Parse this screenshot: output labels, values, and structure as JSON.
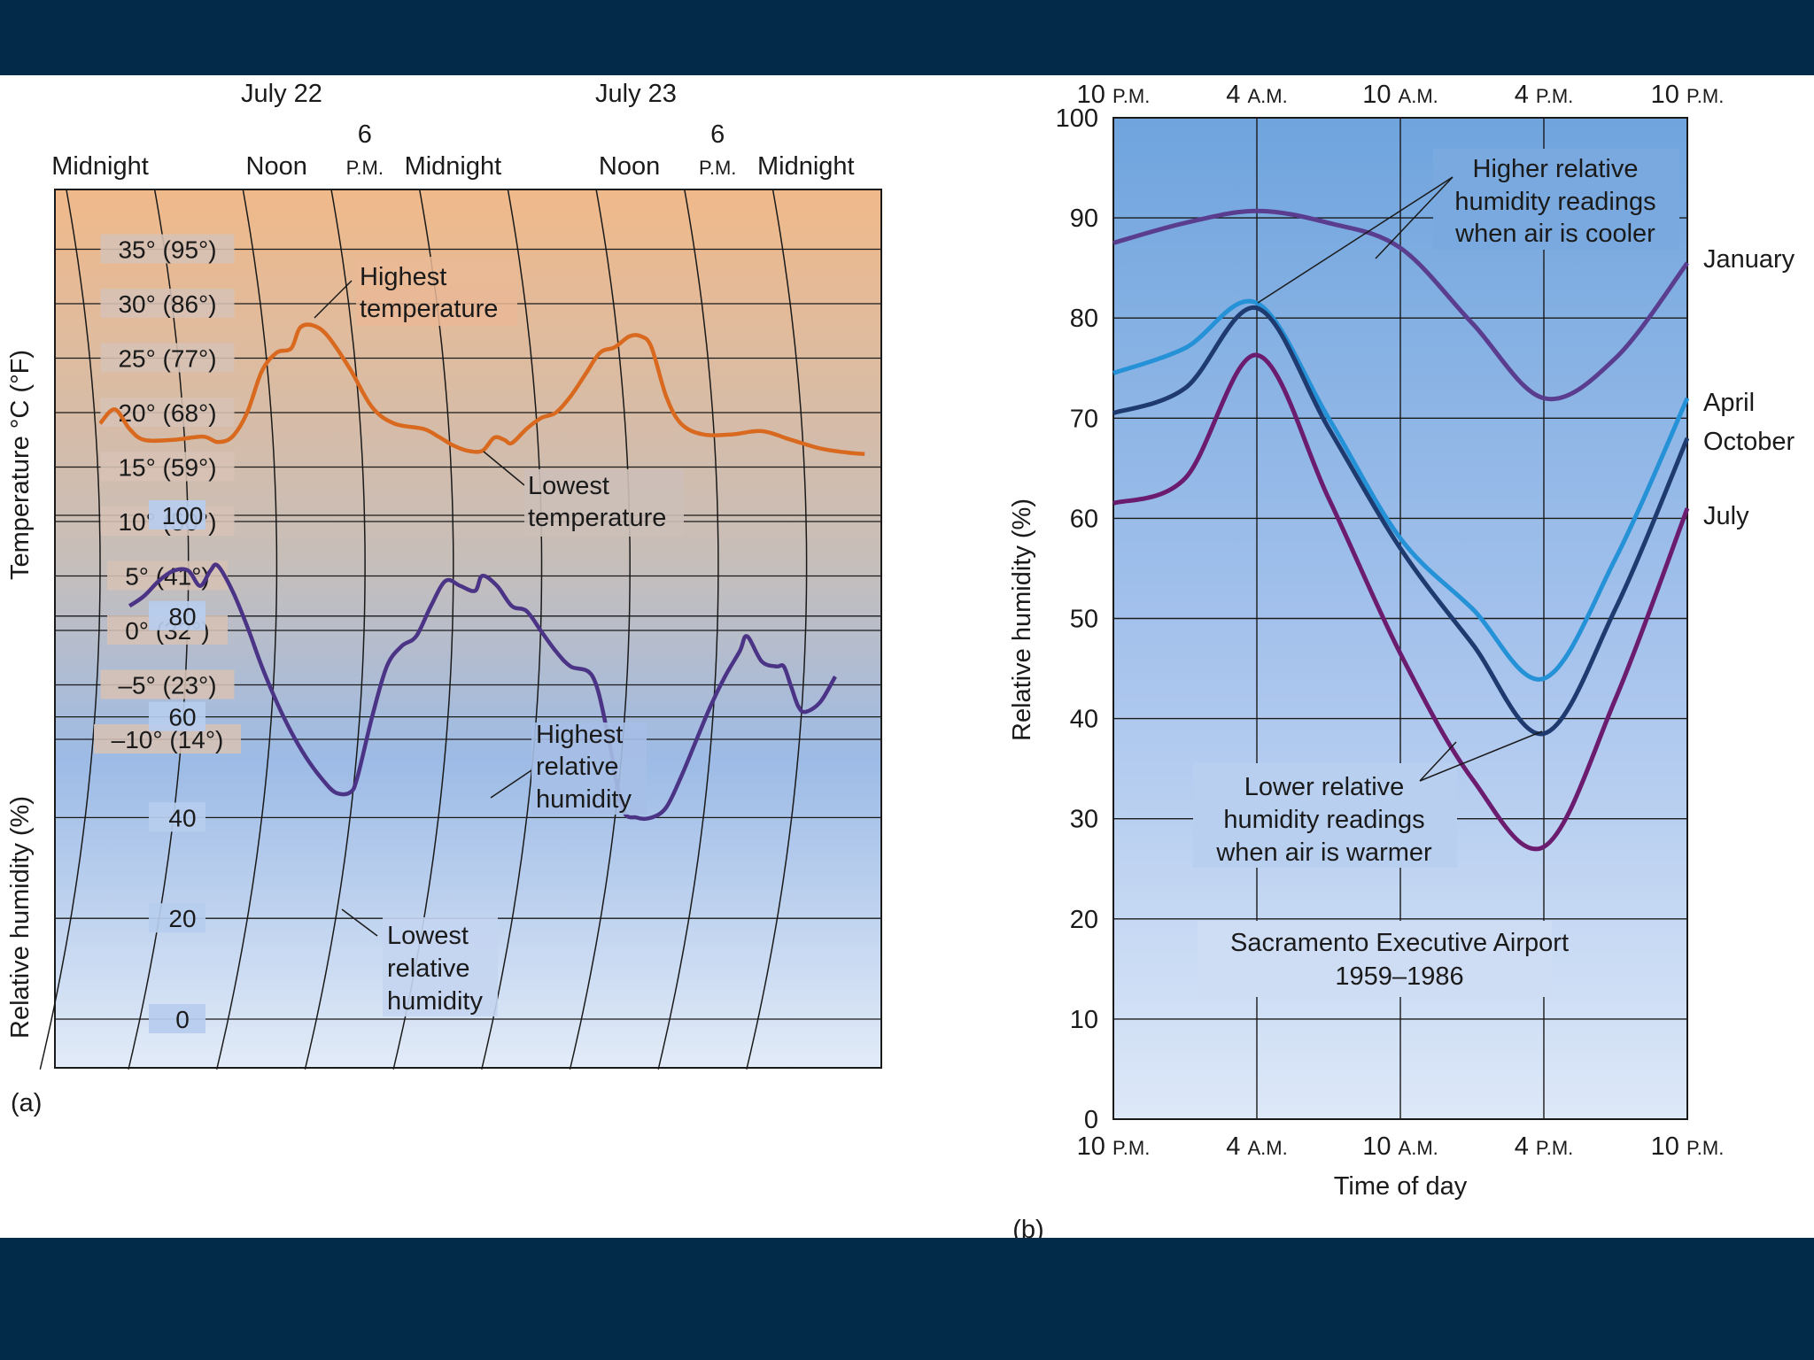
{
  "chart_data": [
    {
      "panel_label": "(a)",
      "type": "line",
      "x_top_dates": [
        "July 22",
        "July 23"
      ],
      "x_top_labels": [
        {
          "t": 0,
          "text": "Midnight"
        },
        {
          "t": 12,
          "text": "Noon"
        },
        {
          "t": 18,
          "text": "6",
          "suffix": "P.M."
        },
        {
          "t": 24,
          "text": "Midnight"
        },
        {
          "t": 36,
          "text": "Noon"
        },
        {
          "t": 42,
          "text": "6",
          "suffix": "P.M."
        },
        {
          "t": 48,
          "text": "Midnight"
        }
      ],
      "temperature": {
        "ylabel": "Temperature °C (°F)",
        "ylim": [
          -10,
          35
        ],
        "ticks": [
          {
            "v": 35,
            "text": "35° (95°)"
          },
          {
            "v": 30,
            "text": "30° (86°)"
          },
          {
            "v": 25,
            "text": "25° (77°)"
          },
          {
            "v": 20,
            "text": "20° (68°)"
          },
          {
            "v": 15,
            "text": "15° (59°)"
          },
          {
            "v": 10,
            "text": "10° (50°)"
          },
          {
            "v": 5,
            "text": "5° (41°)"
          },
          {
            "v": 0,
            "text": "0° (32°)"
          },
          {
            "v": -5,
            "text": "–5° (23°)"
          },
          {
            "v": -10,
            "text": "–10° (14°)"
          }
        ],
        "series": [
          {
            "color": "#d8691e",
            "points": [
              [
                0,
                19
              ],
              [
                1,
                20.3
              ],
              [
                2,
                18.5
              ],
              [
                3,
                17.5
              ],
              [
                5,
                17.5
              ],
              [
                7,
                17.8
              ],
              [
                8,
                17.3
              ],
              [
                9,
                17.8
              ],
              [
                10,
                20
              ],
              [
                11,
                23.8
              ],
              [
                12,
                25.5
              ],
              [
                13,
                25.9
              ],
              [
                13.6,
                27.8
              ],
              [
                14.5,
                28
              ],
              [
                15.5,
                27
              ],
              [
                17,
                24
              ],
              [
                18.5,
                20.5
              ],
              [
                20,
                19
              ],
              [
                22,
                18.5
              ],
              [
                23,
                17.8
              ],
              [
                24,
                17
              ],
              [
                25,
                16.5
              ],
              [
                26,
                16.5
              ],
              [
                26.8,
                17.7
              ],
              [
                27.5,
                17.5
              ],
              [
                28,
                17.2
              ],
              [
                29,
                18.5
              ],
              [
                30,
                19.5
              ],
              [
                31,
                20
              ],
              [
                32,
                21.5
              ],
              [
                33,
                23.5
              ],
              [
                34,
                25.5
              ],
              [
                35,
                26
              ],
              [
                36,
                27
              ],
              [
                36.8,
                27
              ],
              [
                37.5,
                26
              ],
              [
                38.5,
                21.5
              ],
              [
                39.5,
                19
              ],
              [
                41,
                18
              ],
              [
                43,
                18
              ],
              [
                45,
                18.3
              ],
              [
                47,
                17.5
              ],
              [
                49,
                16.7
              ],
              [
                51,
                16.3
              ],
              [
                52,
                16.2
              ]
            ]
          }
        ],
        "annotations": [
          {
            "lines": [
              "Highest",
              "temperature"
            ]
          },
          {
            "lines": [
              "Lowest",
              "temperature"
            ]
          }
        ]
      },
      "humidity": {
        "ylabel": "Relative humidity (%)",
        "ylim": [
          0,
          100
        ],
        "ticks": [
          100,
          80,
          60,
          40,
          20,
          0
        ],
        "series": [
          {
            "color": "#4b3485",
            "points": [
              [
                2,
                82
              ],
              [
                3,
                84
              ],
              [
                4,
                87
              ],
              [
                5,
                89
              ],
              [
                6,
                89
              ],
              [
                6.8,
                86
              ],
              [
                7.5,
                89
              ],
              [
                8,
                90
              ],
              [
                9,
                85
              ],
              [
                10,
                78
              ],
              [
                11,
                70
              ],
              [
                12,
                63
              ],
              [
                13,
                57
              ],
              [
                14,
                52
              ],
              [
                15,
                48
              ],
              [
                16,
                45
              ],
              [
                17,
                45
              ],
              [
                17.5,
                48
              ],
              [
                18.5,
                60
              ],
              [
                19.5,
                70
              ],
              [
                20.5,
                74
              ],
              [
                21.5,
                76
              ],
              [
                22.5,
                82
              ],
              [
                23.5,
                87
              ],
              [
                24.5,
                86
              ],
              [
                25.5,
                85
              ],
              [
                26,
                88
              ],
              [
                27,
                86
              ],
              [
                28,
                82
              ],
              [
                29,
                81
              ],
              [
                30,
                77
              ],
              [
                31,
                73
              ],
              [
                32,
                70
              ],
              [
                33.5,
                68
              ],
              [
                34.5,
                57
              ],
              [
                35.5,
                42
              ],
              [
                36.5,
                40
              ],
              [
                37.5,
                40
              ],
              [
                38.5,
                42
              ],
              [
                39.5,
                48
              ],
              [
                40.5,
                55
              ],
              [
                41.5,
                62
              ],
              [
                42.5,
                68
              ],
              [
                43.5,
                73
              ],
              [
                44,
                76
              ],
              [
                45,
                71
              ],
              [
                46,
                70
              ],
              [
                46.5,
                70
              ],
              [
                47,
                66
              ],
              [
                47.5,
                62
              ],
              [
                48,
                61
              ],
              [
                49,
                63
              ],
              [
                50,
                68
              ]
            ]
          }
        ],
        "annotations": [
          {
            "lines": [
              "Highest",
              "relative",
              "humidity"
            ]
          },
          {
            "lines": [
              "Lowest",
              "relative",
              "humidity"
            ]
          }
        ]
      }
    },
    {
      "panel_label": "(b)",
      "type": "line",
      "xlabel": "Time of day",
      "ylabel": "Relative humidity (%)",
      "ylim": [
        0,
        100
      ],
      "yticks": [
        0,
        10,
        20,
        30,
        40,
        50,
        60,
        70,
        80,
        90,
        100
      ],
      "x_ticks": [
        {
          "num": "10",
          "suffix": "P.M."
        },
        {
          "num": "4",
          "suffix": "A.M."
        },
        {
          "num": "10",
          "suffix": "A.M."
        },
        {
          "num": "4",
          "suffix": "P.M."
        },
        {
          "num": "10",
          "suffix": "P.M."
        }
      ],
      "station": [
        "Sacramento Executive Airport",
        "1959–1986"
      ],
      "series": [
        {
          "name": "January",
          "color": "#5a3d8e",
          "points": [
            [
              0,
              87.5
            ],
            [
              2,
              89.5
            ],
            [
              4,
              90.7
            ],
            [
              6,
              89.5
            ],
            [
              8,
              87
            ],
            [
              10,
              79.5
            ],
            [
              12,
              72
            ],
            [
              14,
              76
            ],
            [
              16,
              85.5
            ]
          ]
        },
        {
          "name": "April",
          "color": "#2591d6",
          "points": [
            [
              0,
              74.5
            ],
            [
              2,
              77
            ],
            [
              4,
              81.5
            ],
            [
              6,
              70
            ],
            [
              8,
              58
            ],
            [
              10,
              51
            ],
            [
              12,
              44
            ],
            [
              14,
              56
            ],
            [
              16,
              72
            ]
          ]
        },
        {
          "name": "October",
          "color": "#1e3a6e",
          "points": [
            [
              0,
              70.5
            ],
            [
              2,
              73
            ],
            [
              4,
              81
            ],
            [
              6,
              69
            ],
            [
              8,
              57
            ],
            [
              10,
              47.5
            ],
            [
              12,
              38.5
            ],
            [
              14,
              51
            ],
            [
              16,
              68
            ]
          ]
        },
        {
          "name": "July",
          "color": "#6b1c6e",
          "points": [
            [
              0,
              61.5
            ],
            [
              2,
              64
            ],
            [
              4,
              76.3
            ],
            [
              6,
              62
            ],
            [
              8,
              46.5
            ],
            [
              10,
              34
            ],
            [
              12,
              27.2
            ],
            [
              14,
              42
            ],
            [
              16,
              61
            ]
          ]
        }
      ],
      "annotations": [
        {
          "lines": [
            "Higher relative",
            "humidity readings",
            "when air is cooler"
          ]
        },
        {
          "lines": [
            "Lower relative",
            "humidity readings",
            "when air is warmer"
          ]
        }
      ]
    }
  ]
}
